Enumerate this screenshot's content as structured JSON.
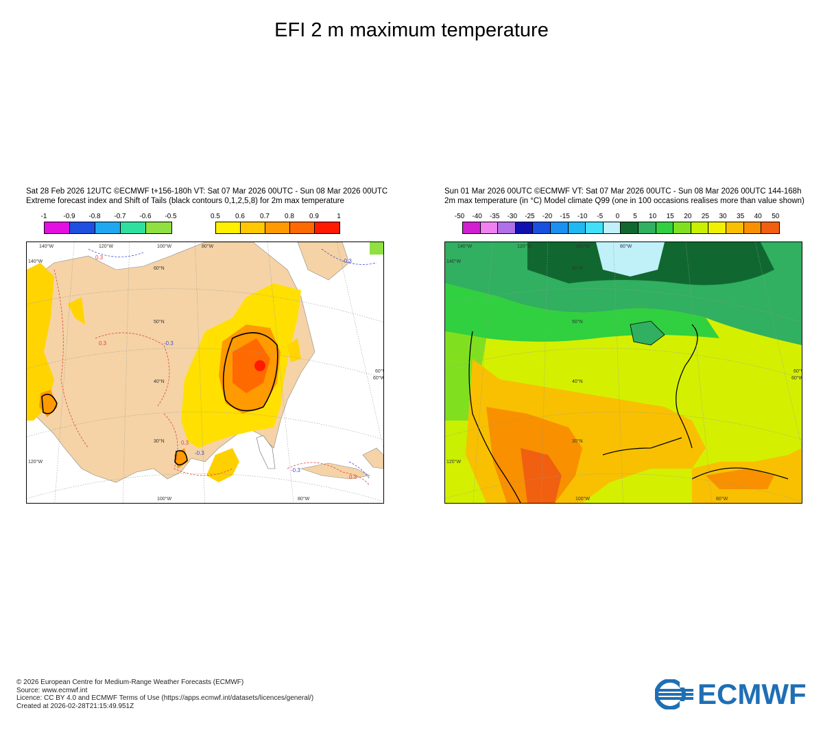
{
  "title": "EFI 2 m maximum temperature",
  "left_panel": {
    "header_line1": "Sat 28 Feb 2026 12UTC ©ECMWF t+156-180h  VT: Sat 07 Mar 2026 00UTC - Sun 08 Mar 2026 00UTC",
    "header_line2": "Extreme forecast index and Shift of Tails (black contours 0,1,2,5,8) for 2m max temperature",
    "legend_neg": {
      "ticks": [
        "-1",
        "-0.9",
        "-0.8",
        "-0.7",
        "-0.6",
        "-0.5"
      ],
      "colors": [
        "#e30fe3",
        "#1f4fe0",
        "#1fa8f0",
        "#2ee0a0",
        "#8fe040"
      ]
    },
    "legend_pos": {
      "ticks": [
        "0.5",
        "0.6",
        "0.7",
        "0.8",
        "0.9",
        "1"
      ],
      "colors": [
        "#ffef00",
        "#ffc800",
        "#ff9a00",
        "#ff6a00",
        "#ff1a00"
      ]
    },
    "lon_labels": [
      "140°W",
      "120°W",
      "100°W",
      "80°W",
      "60°W",
      "100°W",
      "80°W"
    ],
    "lat_labels": [
      "60°N",
      "50°N",
      "40°N",
      "30°N",
      "140°W",
      "120°W",
      "60°W"
    ],
    "contour_labels": [
      "0.3",
      "-0.3",
      "0.3",
      "-0.3",
      "0.3",
      "-0.3",
      "0.3",
      "-0.3"
    ]
  },
  "right_panel": {
    "header_line1": "Sun 01 Mar 2026 00UTC ©ECMWF VT: Sat 07 Mar 2026 00UTC - Sun 08 Mar 2026 00UTC   144-168h",
    "header_line2": "2m max temperature (in °C)  Model climate Q99 (one in 100 occasions realises more than value shown)",
    "legend": {
      "ticks": [
        "-50",
        "-40",
        "-35",
        "-30",
        "-25",
        "-20",
        "-15",
        "-10",
        "-5",
        "0",
        "5",
        "10",
        "15",
        "20",
        "25",
        "30",
        "35",
        "40",
        "50"
      ],
      "colors": [
        "#d21fd2",
        "#f080f0",
        "#b070e8",
        "#1010b0",
        "#1a50e0",
        "#1a90f0",
        "#20b8f0",
        "#40e0f8",
        "#c0f0f8",
        "#106830",
        "#30b060",
        "#30d040",
        "#80e020",
        "#c8f000",
        "#f0f000",
        "#f8c000",
        "#f89000",
        "#f06010"
      ]
    },
    "lon_labels": [
      "140°W",
      "120°W",
      "100°W",
      "80°W",
      "60°W",
      "100°W",
      "80°W"
    ],
    "lat_labels": [
      "60°N",
      "50°N",
      "40°N",
      "30°N",
      "140°W",
      "120°W",
      "60°W"
    ]
  },
  "footer": {
    "line1": "© 2026 European Centre for Medium-Range Weather Forecasts (ECMWF)",
    "line2": "Source: www.ecmwf.int",
    "line3": "Licence: CC BY 4.0 and ECMWF Terms of Use (https://apps.ecmwf.int/datasets/licences/general/)",
    "line4": "Created at 2026-02-28T21:15:49.951Z"
  },
  "logo_text": "ECMWF"
}
